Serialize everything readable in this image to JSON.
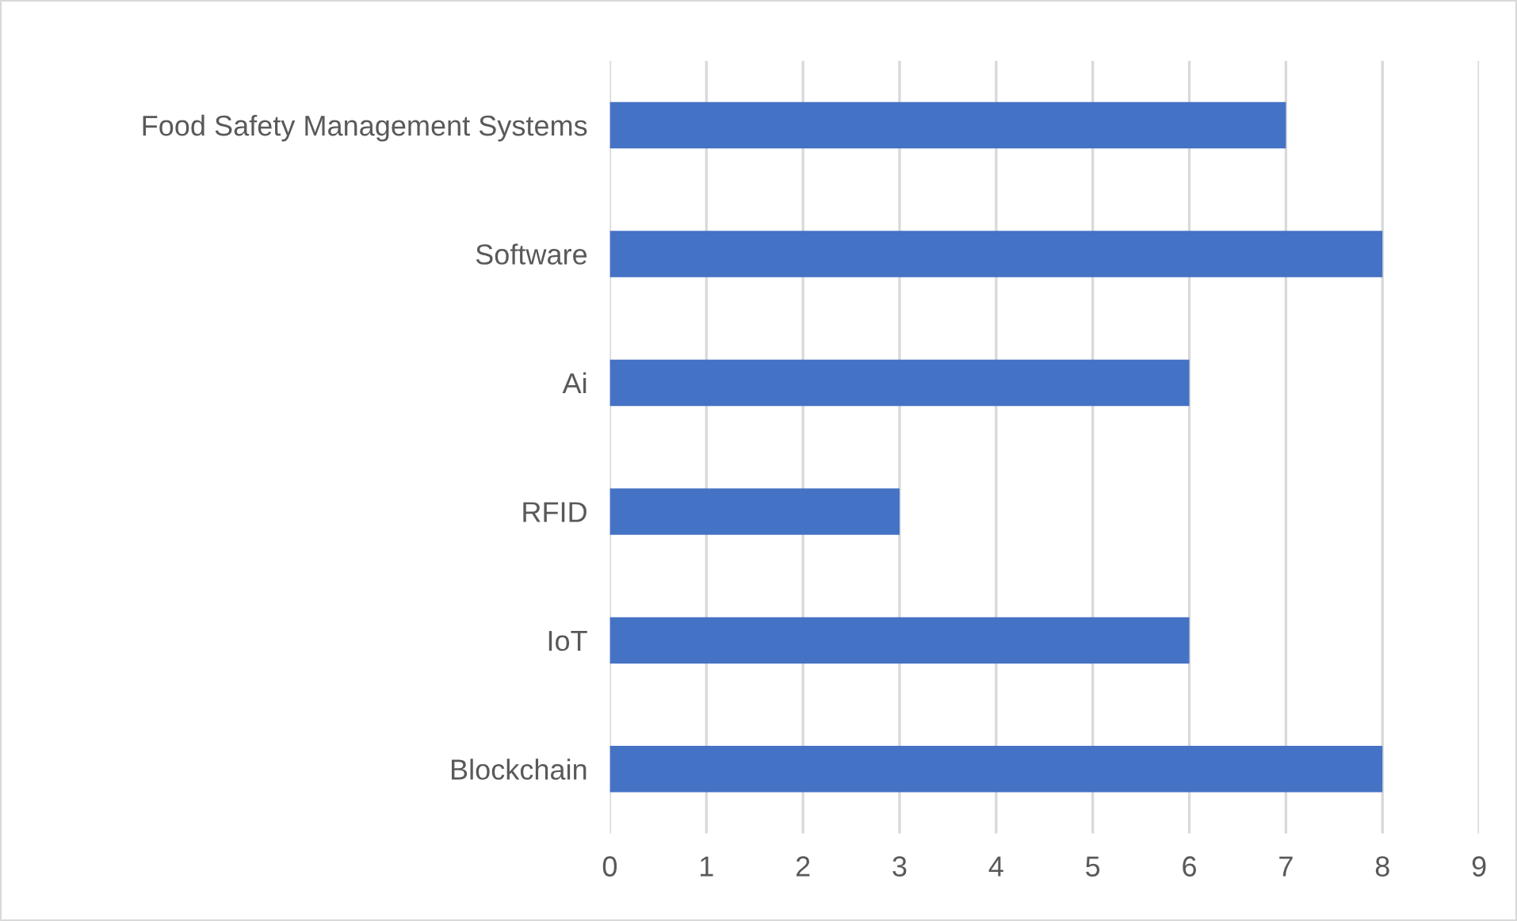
{
  "chart_data": {
    "type": "bar",
    "orientation": "horizontal",
    "categories": [
      "Food Safety Management Systems",
      "Software",
      "Ai",
      "RFID",
      "IoT",
      "Blockchain"
    ],
    "values": [
      7,
      8,
      6,
      3,
      6,
      8
    ],
    "color": "#4472c4",
    "xlim": [
      0,
      9
    ],
    "xticks": [
      0,
      1,
      2,
      3,
      4,
      5,
      6,
      7,
      8,
      9
    ],
    "grid": "x",
    "legend": false
  }
}
